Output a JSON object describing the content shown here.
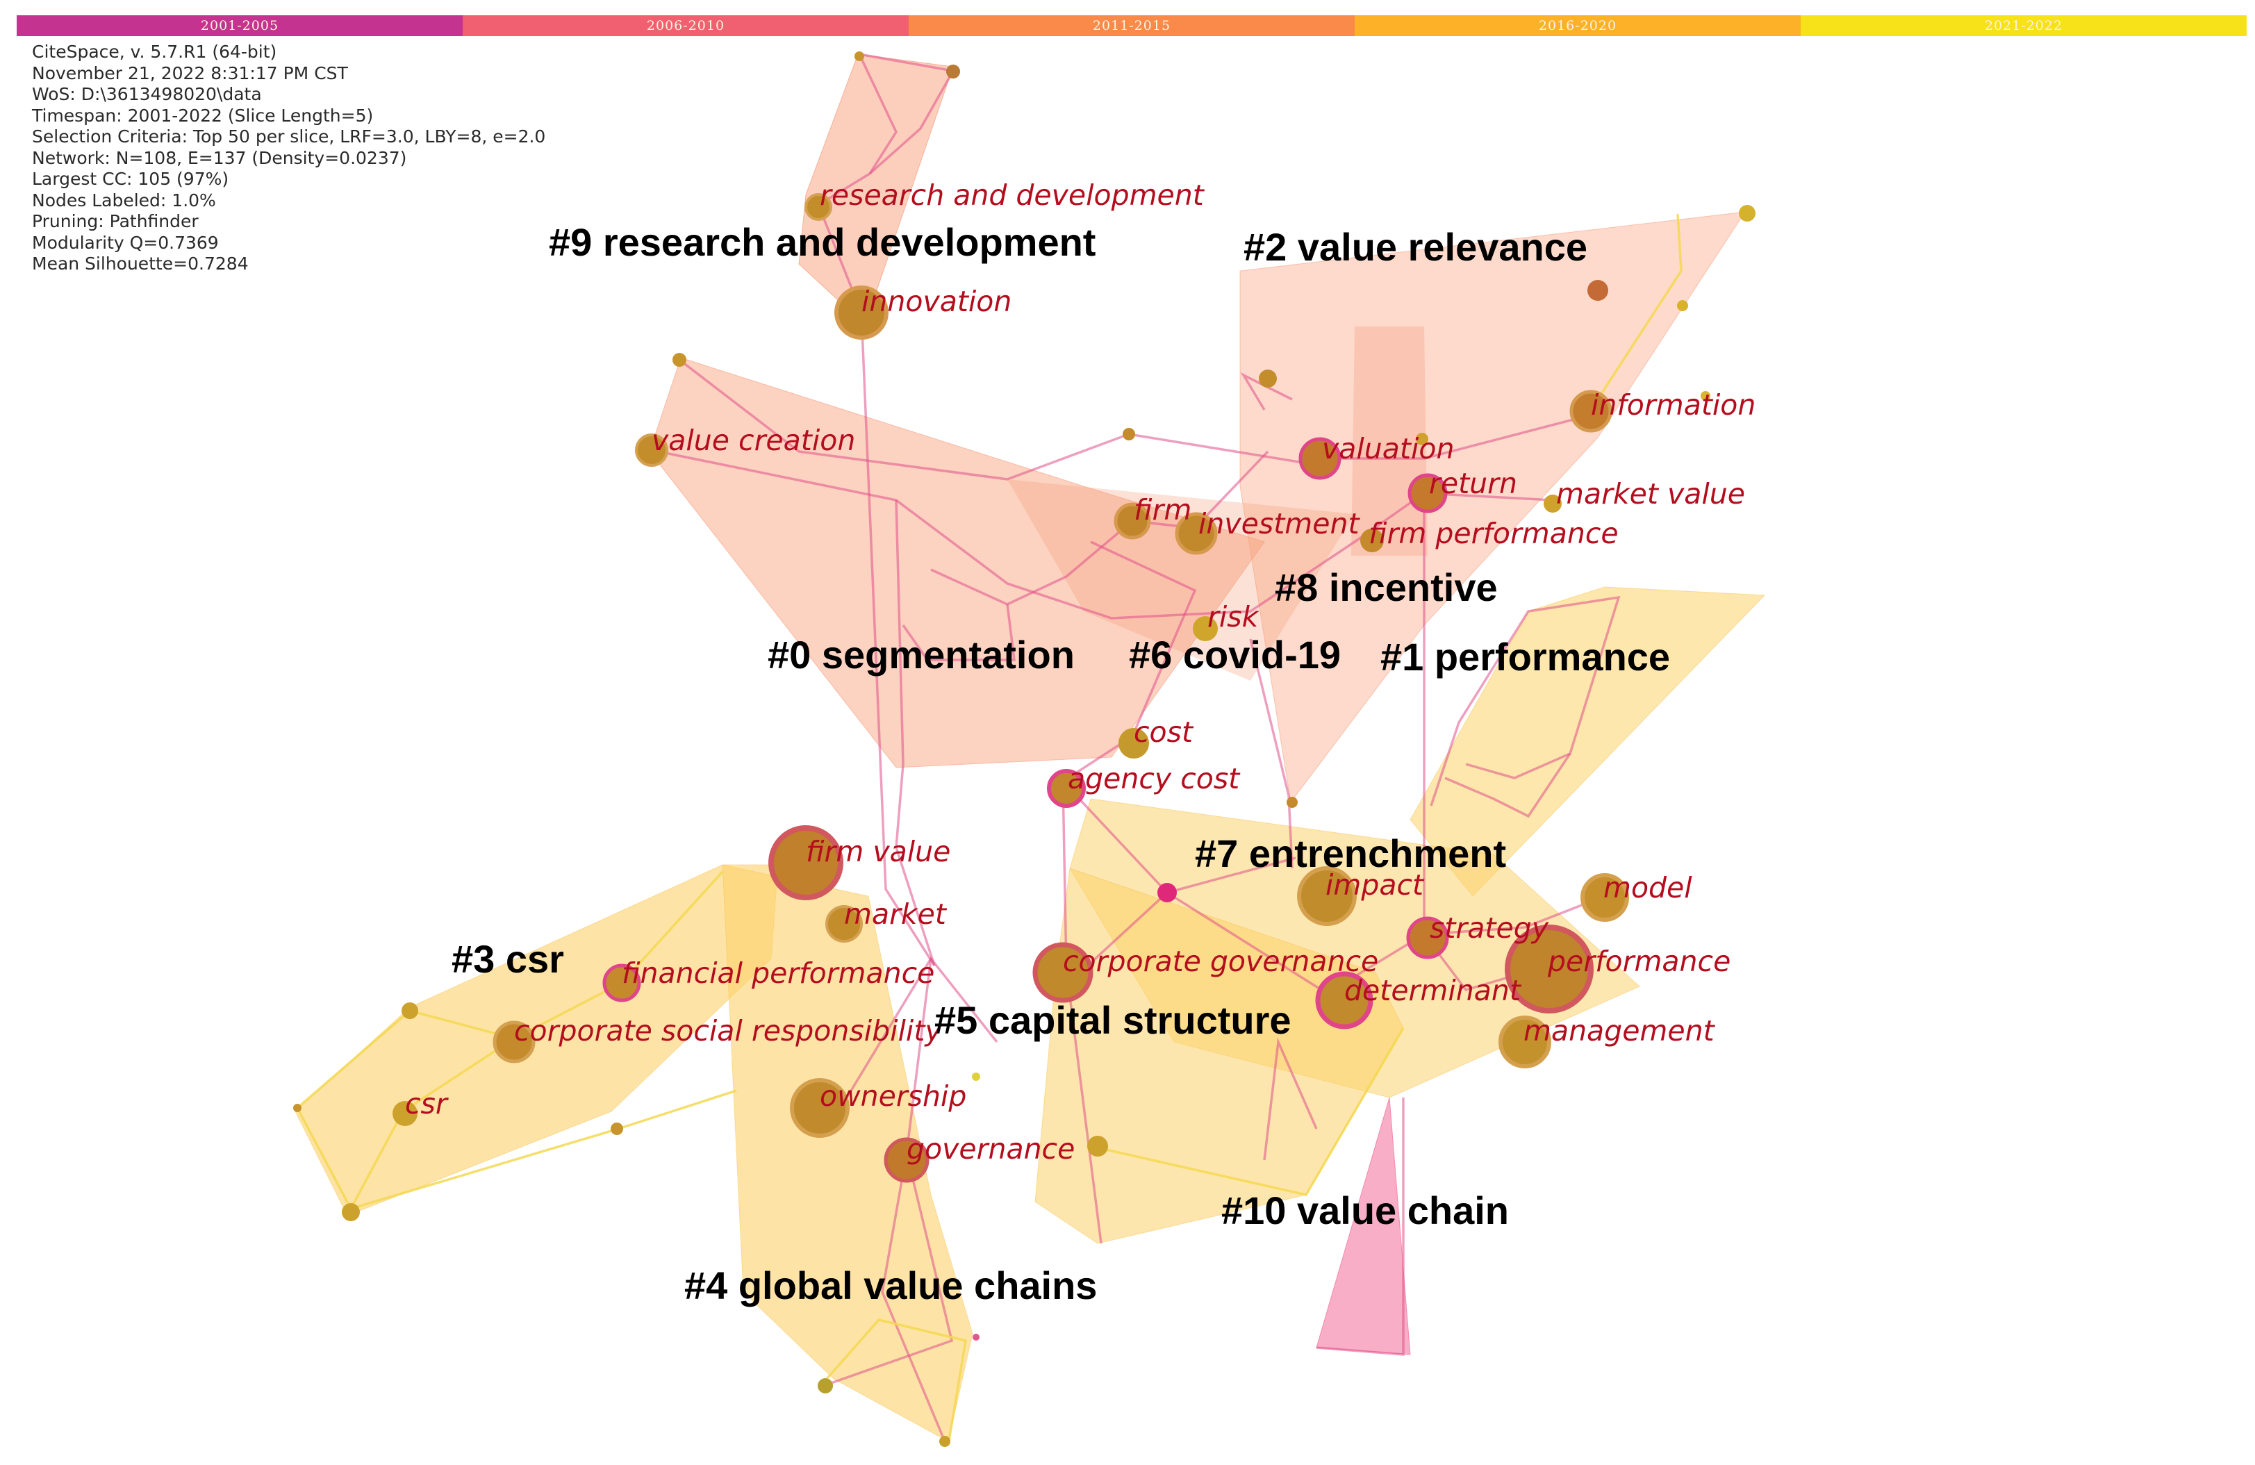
{
  "timeline": [
    {
      "label": "2001-2005",
      "color": "#c4338f"
    },
    {
      "label": "2006-2010",
      "color": "#f06070"
    },
    {
      "label": "2011-2015",
      "color": "#f98a4a"
    },
    {
      "label": "2016-2020",
      "color": "#fdb128"
    },
    {
      "label": "2021-2022",
      "color": "#f7e21a"
    }
  ],
  "meta": [
    "CiteSpace, v. 5.7.R1 (64-bit)",
    "November 21, 2022 8:31:17 PM CST",
    "WoS: D:\\3613498020\\data",
    "Timespan: 2001-2022 (Slice Length=5)",
    "Selection Criteria: Top 50 per slice, LRF=3.0, LBY=8, e=2.0",
    "Network: N=108, E=137 (Density=0.0237)",
    "Largest CC: 105 (97%)",
    "Nodes Labeled: 1.0%",
    "Pruning: Pathfinder",
    "Modularity Q=0.7369",
    "Mean Silhouette=0.7284"
  ],
  "clusters": [
    {
      "label": "#9 research and development"
    },
    {
      "label": "#2 value relevance"
    },
    {
      "label": "#0 segmentation"
    },
    {
      "label": "#6 covid-19"
    },
    {
      "label": "#8 incentive"
    },
    {
      "label": "#1 performance"
    },
    {
      "label": "#7 entrenchment"
    },
    {
      "label": "#3 csr"
    },
    {
      "label": "#5 capital structure"
    },
    {
      "label": "#10 value chain"
    },
    {
      "label": "#4 global value chains"
    }
  ],
  "keywords": [
    {
      "label": "research and development"
    },
    {
      "label": "innovation"
    },
    {
      "label": "value creation"
    },
    {
      "label": "valuation"
    },
    {
      "label": "information"
    },
    {
      "label": "return"
    },
    {
      "label": "market value"
    },
    {
      "label": "firm"
    },
    {
      "label": "investment"
    },
    {
      "label": "firm performance"
    },
    {
      "label": "risk"
    },
    {
      "label": "cost"
    },
    {
      "label": "agency cost"
    },
    {
      "label": "firm value"
    },
    {
      "label": "market"
    },
    {
      "label": "impact"
    },
    {
      "label": "model"
    },
    {
      "label": "strategy"
    },
    {
      "label": "performance"
    },
    {
      "label": "corporate governance"
    },
    {
      "label": "determinant"
    },
    {
      "label": "management"
    },
    {
      "label": "financial performance"
    },
    {
      "label": "corporate social responsibility"
    },
    {
      "label": "csr"
    },
    {
      "label": "ownership"
    },
    {
      "label": "governance"
    }
  ]
}
